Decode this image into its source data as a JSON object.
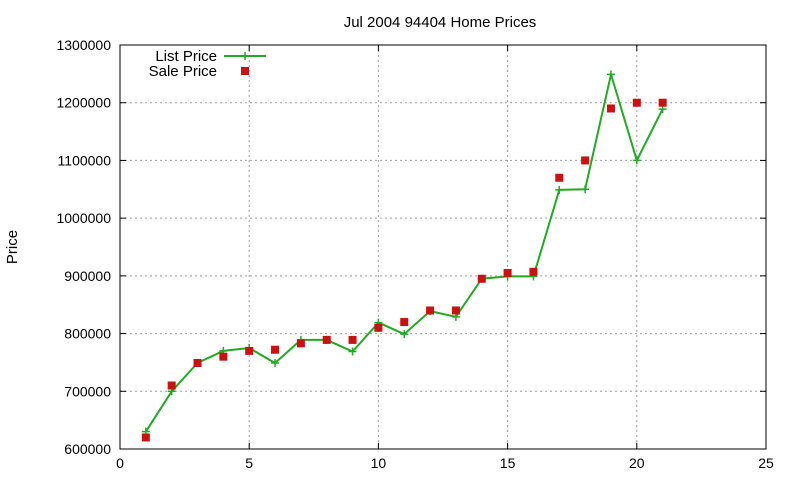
{
  "chart_data": {
    "type": "line",
    "title": "Jul 2004 94404 Home Prices",
    "xlabel": "",
    "ylabel": "Price",
    "xlim": [
      0,
      25
    ],
    "ylim": [
      600000,
      1300000
    ],
    "xticks": [
      0,
      5,
      10,
      15,
      20,
      25
    ],
    "yticks": [
      600000,
      700000,
      800000,
      900000,
      1000000,
      1100000,
      1200000,
      1300000
    ],
    "grid": true,
    "legend_position": "top-left",
    "series": [
      {
        "name": "List Price",
        "style": "line-with-plus-markers",
        "color": "#22aa22",
        "x": [
          1,
          2,
          3,
          4,
          5,
          6,
          7,
          8,
          9,
          10,
          11,
          12,
          13,
          14,
          15,
          16,
          17,
          18,
          19,
          20,
          21
        ],
        "values": [
          630000,
          700000,
          749000,
          770000,
          775000,
          749000,
          789000,
          789000,
          769000,
          819000,
          799000,
          839000,
          829000,
          895000,
          899000,
          899000,
          1049000,
          1050000,
          1249000,
          1100000,
          1189000
        ]
      },
      {
        "name": "Sale Price",
        "style": "square-markers",
        "color": "#cc1111",
        "x": [
          1,
          2,
          3,
          4,
          5,
          6,
          7,
          8,
          9,
          10,
          11,
          12,
          13,
          14,
          15,
          16,
          17,
          18,
          19,
          20,
          21
        ],
        "values": [
          620000,
          710000,
          749000,
          760000,
          770000,
          772000,
          783000,
          789000,
          789000,
          810000,
          820000,
          840000,
          840000,
          895000,
          905000,
          907000,
          1070000,
          1100000,
          1190000,
          1200000,
          1200000
        ]
      }
    ]
  }
}
